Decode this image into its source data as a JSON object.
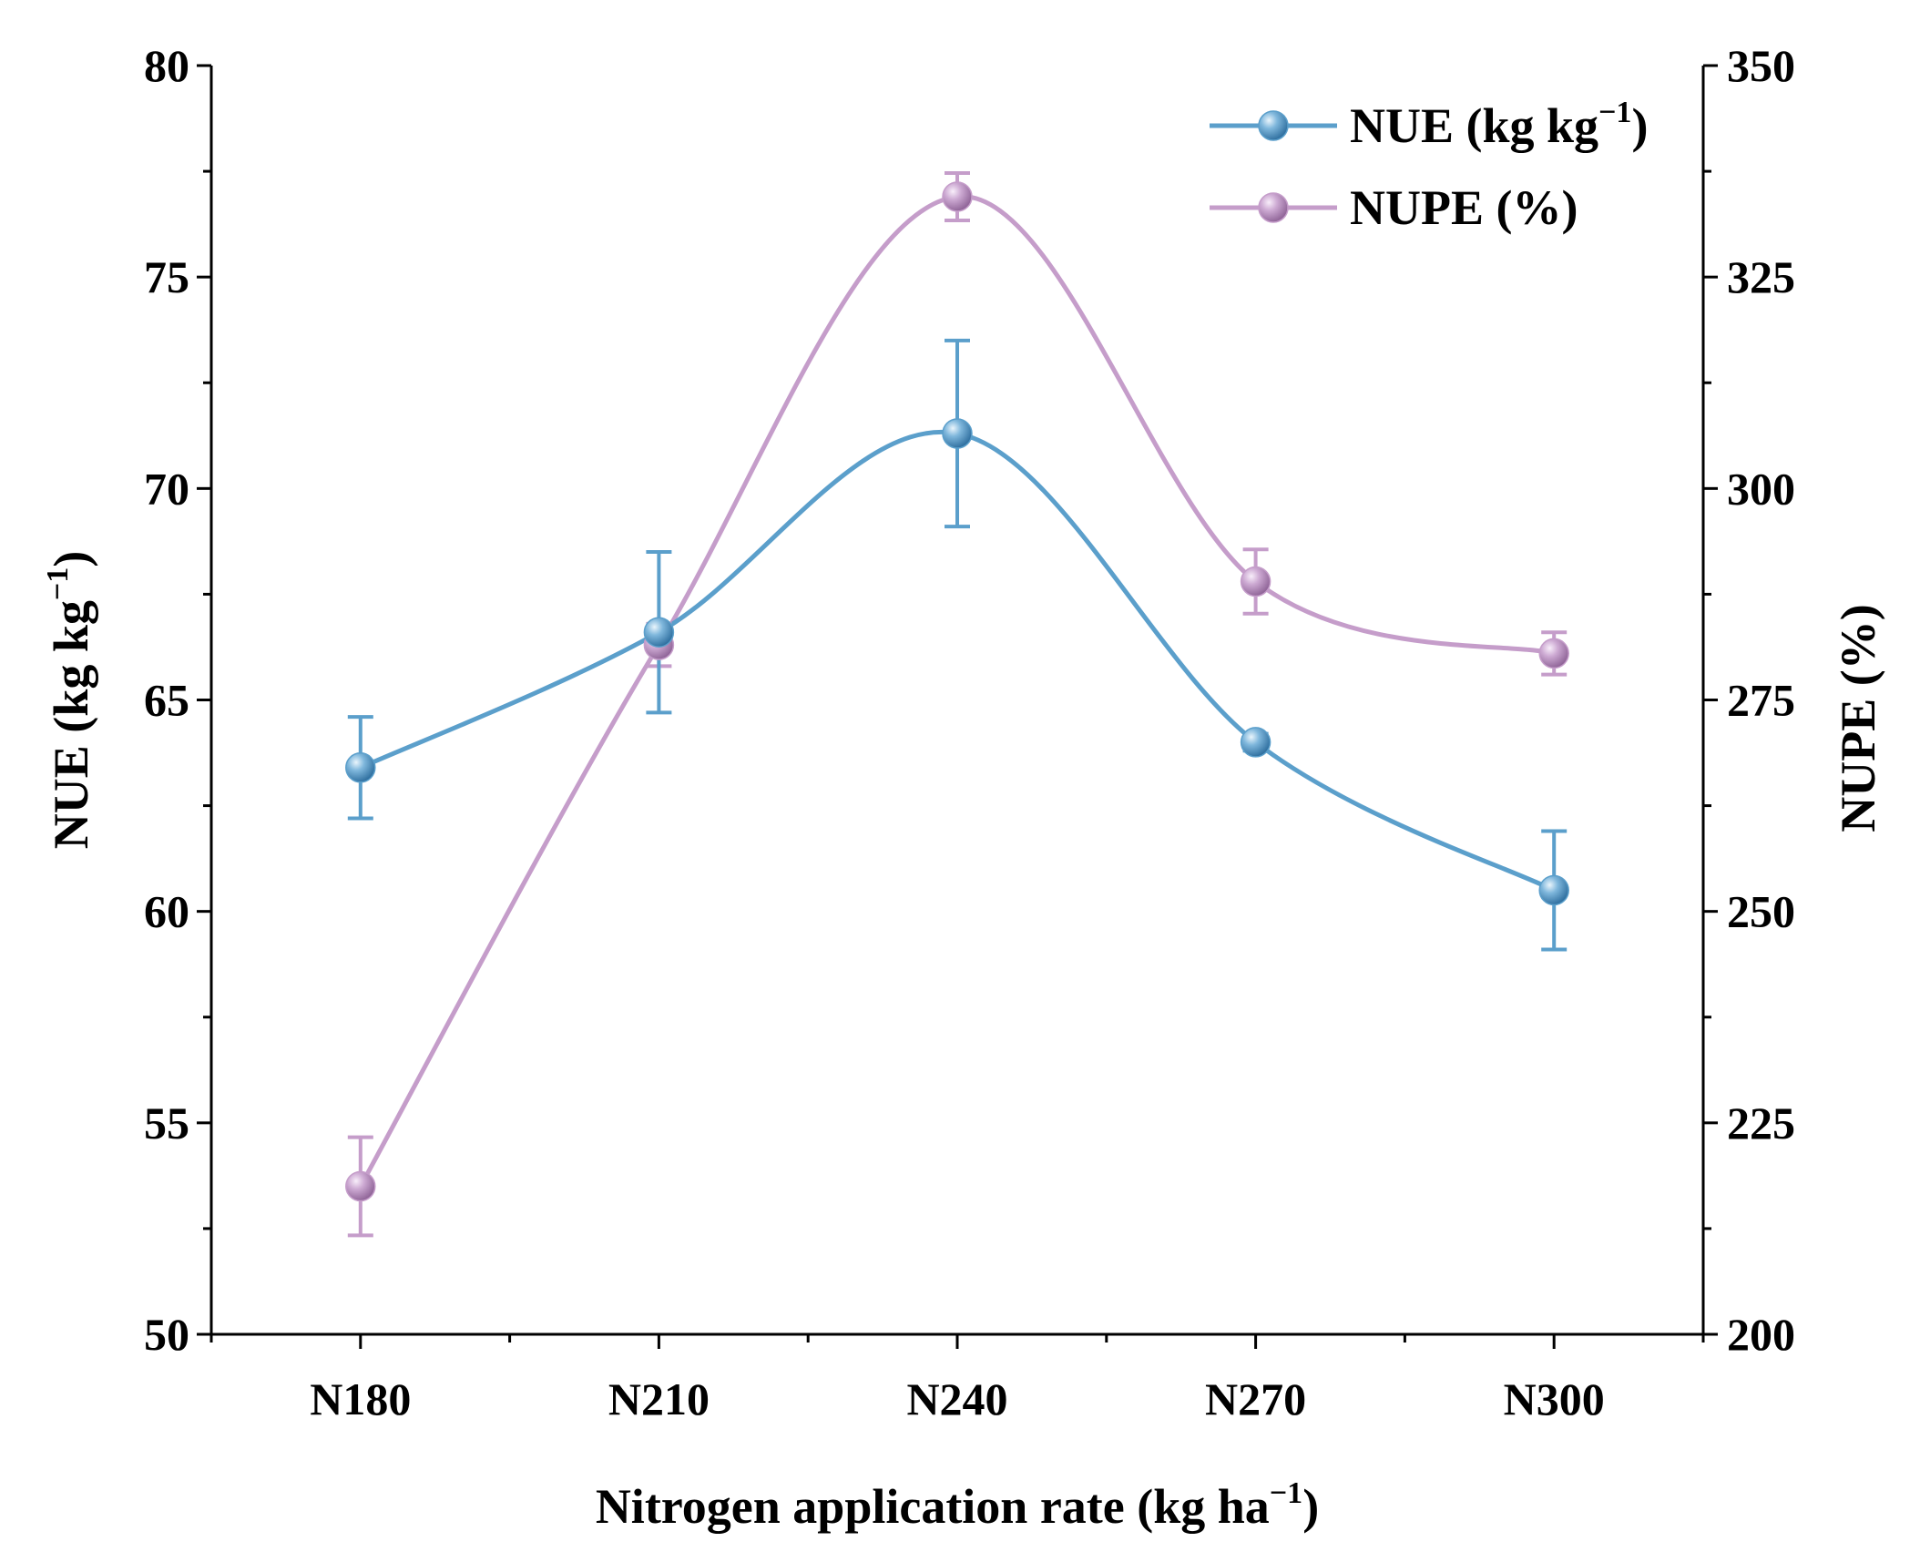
{
  "chart_data": {
    "type": "line",
    "categories": [
      "N180",
      "N210",
      "N240",
      "N270",
      "N300"
    ],
    "xlabel": {
      "main": "Nitrogen application rate (kg ha",
      "sup": "−1",
      "end": ")"
    },
    "y_left": {
      "label": {
        "main": "NUE (kg kg",
        "sup": "−1",
        "end": ")"
      },
      "lim": [
        50,
        80
      ],
      "ticks": [
        50,
        55,
        60,
        65,
        70,
        75,
        80
      ]
    },
    "y_right": {
      "label": {
        "main": "NUPE (%)"
      },
      "lim": [
        200,
        350
      ],
      "ticks": [
        200,
        225,
        250,
        275,
        300,
        325,
        350
      ]
    },
    "series": [
      {
        "name": "NUE (kg kg−1)",
        "legend": {
          "main": "NUE (kg kg",
          "sup": "−1",
          "end": ")"
        },
        "axis": "left",
        "color": "#5b9fcb",
        "values": [
          63.4,
          66.6,
          71.3,
          64.0,
          60.5
        ],
        "errors": [
          1.2,
          1.9,
          2.2,
          0.2,
          1.4
        ]
      },
      {
        "name": "NUPE (%)",
        "legend": {
          "main": "NUPE (%)"
        },
        "axis": "right",
        "color": "#c59dca",
        "values": [
          217.5,
          281.5,
          334.5,
          289.0,
          280.5
        ],
        "errors": [
          5.8,
          2.5,
          2.8,
          3.8,
          2.5
        ]
      }
    ]
  }
}
